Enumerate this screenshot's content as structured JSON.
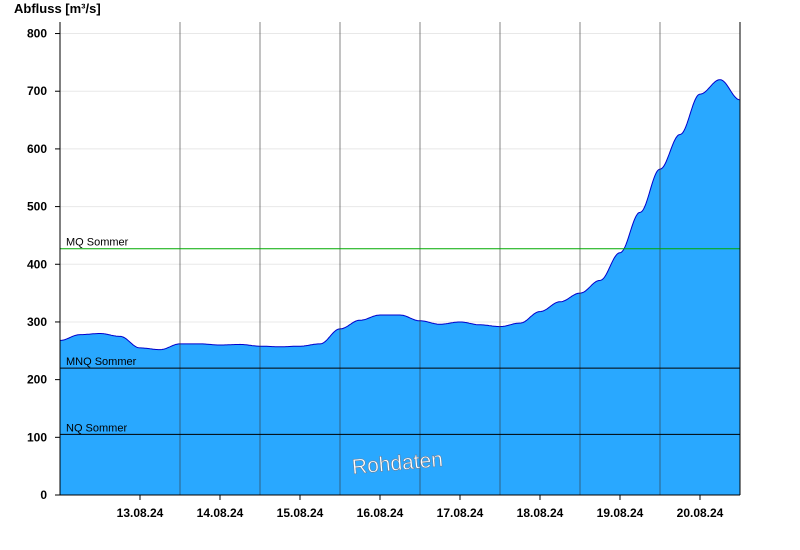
{
  "chart_data": {
    "type": "area",
    "ylabel": "Abfluss [m³/s]",
    "ylim": [
      0,
      820
    ],
    "yticks": [
      0,
      100,
      200,
      300,
      400,
      500,
      600,
      700,
      800
    ],
    "x_start": "12.08.24 12:00",
    "x_end": "20.08.24 24:00",
    "xticks": [
      "13.08.24",
      "14.08.24",
      "15.08.24",
      "16.08.24",
      "17.08.24",
      "18.08.24",
      "19.08.24",
      "20.08.24"
    ],
    "grid": true,
    "fill_color": "#29a8ff",
    "line_color": "#0000cc",
    "series": [
      {
        "x": [
          "12.08.24 12:00",
          "12.08.24 18:00",
          "13.08.24 00:00",
          "13.08.24 06:00",
          "13.08.24 12:00",
          "13.08.24 18:00",
          "14.08.24 00:00",
          "14.08.24 06:00",
          "14.08.24 12:00",
          "14.08.24 18:00",
          "15.08.24 00:00",
          "15.08.24 06:00",
          "15.08.24 12:00",
          "15.08.24 18:00",
          "16.08.24 00:00",
          "16.08.24 06:00",
          "16.08.24 12:00",
          "16.08.24 18:00",
          "17.08.24 00:00",
          "17.08.24 06:00",
          "17.08.24 12:00",
          "17.08.24 18:00",
          "18.08.24 00:00",
          "18.08.24 06:00",
          "18.08.24 12:00",
          "18.08.24 18:00",
          "19.08.24 00:00",
          "19.08.24 06:00",
          "19.08.24 12:00",
          "19.08.24 18:00",
          "20.08.24 00:00",
          "20.08.24 06:00",
          "20.08.24 12:00",
          "20.08.24 18:00",
          "20.08.24 24:00"
        ],
        "values": [
          268,
          278,
          280,
          275,
          255,
          252,
          262,
          262,
          260,
          261,
          258,
          257,
          258,
          262,
          288,
          303,
          312,
          312,
          302,
          296,
          300,
          295,
          292,
          298,
          318,
          335,
          350,
          372,
          420,
          490,
          565,
          625,
          695,
          720,
          685
        ]
      }
    ],
    "reference_lines": [
      {
        "label": "MQ Sommer",
        "value": 427,
        "color": "#00aa00"
      },
      {
        "label": "MNQ Sommer",
        "value": 220,
        "color": "#000000"
      },
      {
        "label": "NQ Sommer",
        "value": 105,
        "color": "#000000"
      }
    ],
    "watermark": "Rohdaten"
  }
}
